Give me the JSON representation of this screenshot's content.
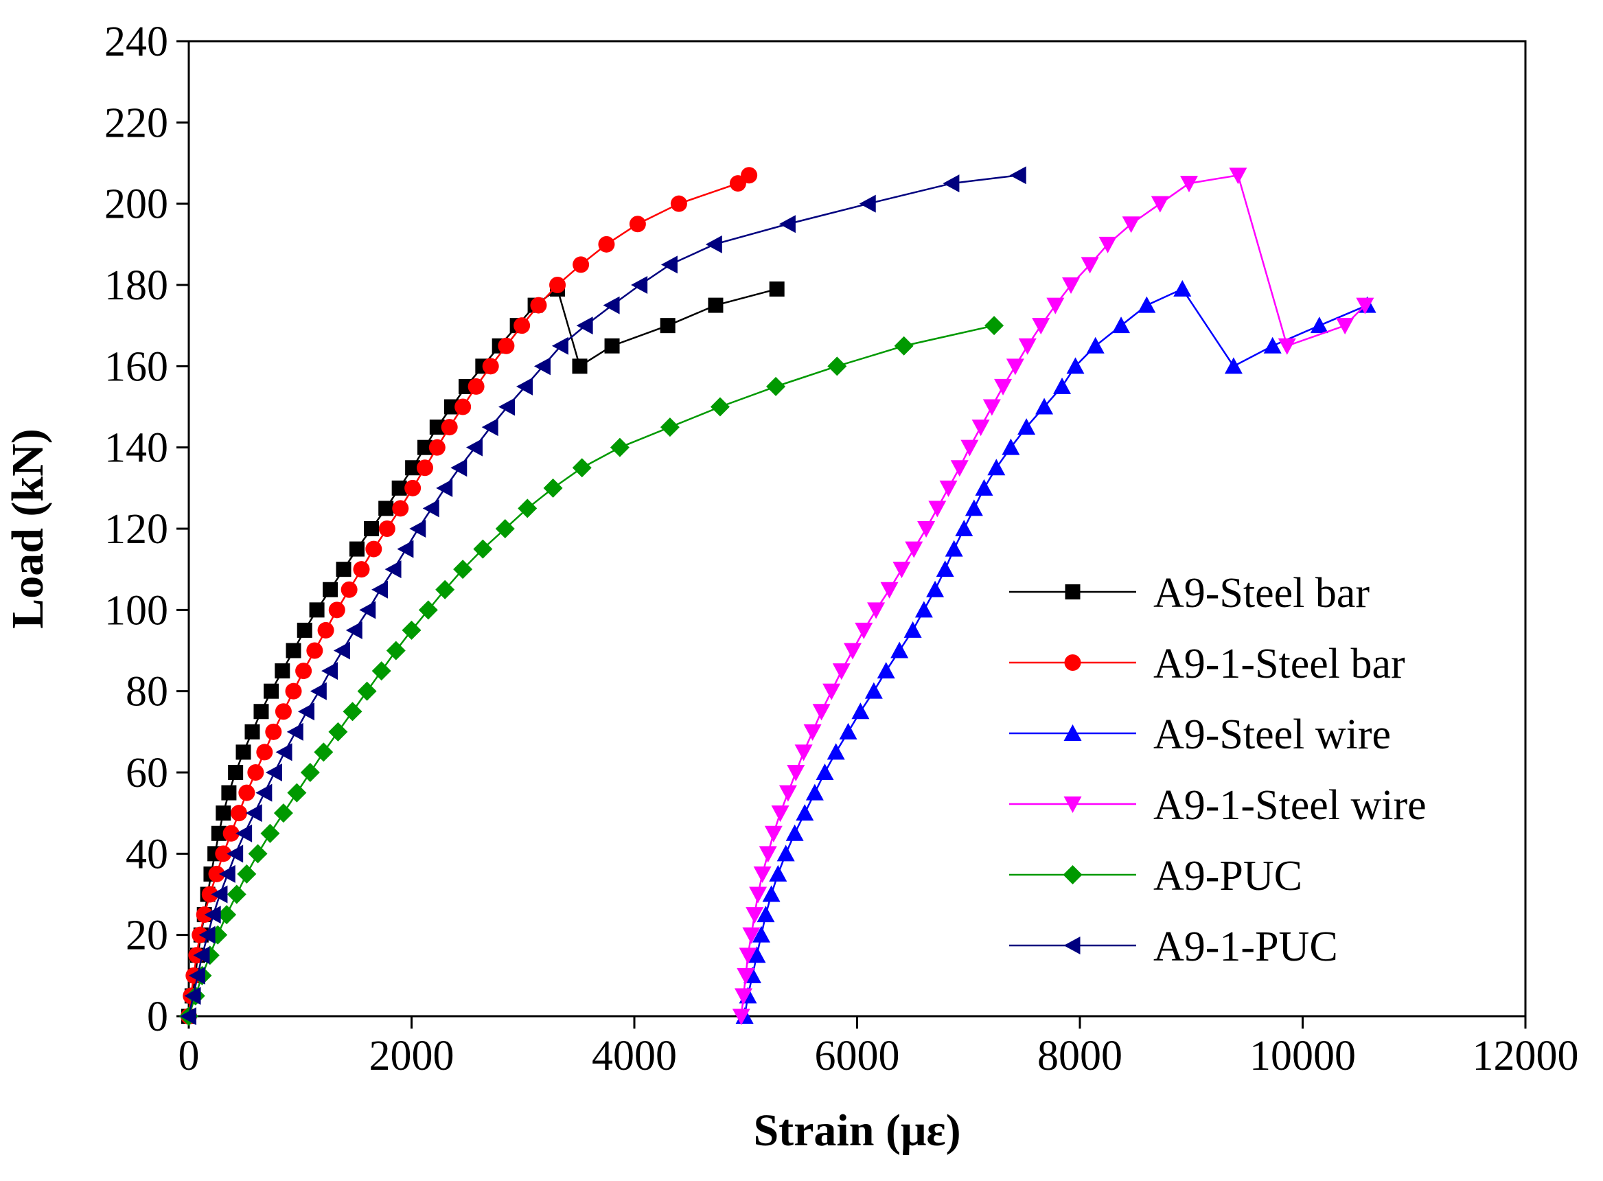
{
  "chart_data": {
    "type": "line",
    "title": "",
    "xlabel": "Strain (με)",
    "ylabel": "Load (kN)",
    "xlim": [
      0,
      12000
    ],
    "ylim": [
      0,
      240
    ],
    "xticks": [
      0,
      2000,
      4000,
      6000,
      8000,
      10000,
      12000
    ],
    "yticks": [
      0,
      20,
      40,
      60,
      80,
      100,
      120,
      140,
      160,
      180,
      200,
      220,
      240
    ],
    "grid": false,
    "legend_position": "right",
    "series": [
      {
        "name": "A9-Steel bar",
        "color": "#000000",
        "marker": "square",
        "x": [
          0,
          30,
          60,
          80,
          110,
          140,
          170,
          200,
          235,
          270,
          310,
          360,
          420,
          490,
          570,
          650,
          740,
          840,
          940,
          1040,
          1150,
          1270,
          1390,
          1510,
          1640,
          1770,
          1890,
          2010,
          2120,
          2230,
          2360,
          2490,
          2640,
          2790,
          2950,
          3110,
          3310,
          3510,
          3800,
          4300,
          4730,
          5280
        ],
        "y": [
          0,
          5,
          10,
          15,
          20,
          25,
          30,
          35,
          40,
          45,
          50,
          55,
          60,
          65,
          70,
          75,
          80,
          85,
          90,
          95,
          100,
          105,
          110,
          115,
          120,
          125,
          130,
          135,
          140,
          145,
          150,
          155,
          160,
          165,
          170,
          175,
          179,
          160,
          165,
          170,
          175,
          179
        ]
      },
      {
        "name": "A9-1-Steel bar",
        "color": "#ff0000",
        "marker": "circle",
        "x": [
          0,
          20,
          45,
          70,
          100,
          140,
          190,
          250,
          310,
          380,
          450,
          520,
          600,
          680,
          760,
          850,
          940,
          1030,
          1130,
          1230,
          1330,
          1440,
          1550,
          1660,
          1780,
          1900,
          2010,
          2120,
          2230,
          2340,
          2460,
          2580,
          2710,
          2850,
          2990,
          3140,
          3310,
          3520,
          3750,
          4030,
          4400,
          4930,
          5030
        ],
        "y": [
          0,
          5,
          10,
          15,
          20,
          25,
          30,
          35,
          40,
          45,
          50,
          55,
          60,
          65,
          70,
          75,
          80,
          85,
          90,
          95,
          100,
          105,
          110,
          115,
          120,
          125,
          130,
          135,
          140,
          145,
          150,
          155,
          160,
          165,
          170,
          175,
          180,
          185,
          190,
          195,
          200,
          205,
          207
        ]
      },
      {
        "name": "A9-Steel wire",
        "color": "#0000ff",
        "marker": "triangle-up",
        "x": [
          4990,
          5020,
          5060,
          5100,
          5140,
          5180,
          5230,
          5290,
          5360,
          5440,
          5530,
          5620,
          5710,
          5810,
          5920,
          6030,
          6150,
          6260,
          6380,
          6500,
          6600,
          6700,
          6790,
          6870,
          6960,
          7050,
          7140,
          7250,
          7380,
          7520,
          7680,
          7840,
          7960,
          8140,
          8370,
          8600,
          8920,
          9380,
          9730,
          10150,
          10580
        ],
        "y": [
          0,
          5,
          10,
          15,
          20,
          25,
          30,
          35,
          40,
          45,
          50,
          55,
          60,
          65,
          70,
          75,
          80,
          85,
          90,
          95,
          100,
          105,
          110,
          115,
          120,
          125,
          130,
          135,
          140,
          145,
          150,
          155,
          160,
          165,
          170,
          175,
          179,
          160,
          165,
          170,
          175
        ]
      },
      {
        "name": "A9-1-Steel wire",
        "color": "#ff00ff",
        "marker": "triangle-down",
        "x": [
          4960,
          4980,
          5000,
          5020,
          5050,
          5080,
          5110,
          5150,
          5200,
          5250,
          5310,
          5380,
          5450,
          5520,
          5600,
          5680,
          5770,
          5860,
          5960,
          6060,
          6170,
          6290,
          6400,
          6510,
          6620,
          6720,
          6820,
          6920,
          7010,
          7110,
          7210,
          7310,
          7420,
          7530,
          7650,
          7780,
          7920,
          8090,
          8250,
          8460,
          8720,
          8980,
          9420,
          9860,
          10380,
          10560
        ],
        "y": [
          0,
          5,
          10,
          15,
          20,
          25,
          30,
          35,
          40,
          45,
          50,
          55,
          60,
          65,
          70,
          75,
          80,
          85,
          90,
          95,
          100,
          105,
          110,
          115,
          120,
          125,
          130,
          135,
          140,
          145,
          150,
          155,
          160,
          165,
          170,
          175,
          180,
          185,
          190,
          195,
          200,
          205,
          207,
          165,
          170,
          175
        ]
      },
      {
        "name": "A9-PUC",
        "color": "#009900",
        "marker": "diamond",
        "x": [
          0,
          60,
          120,
          190,
          260,
          340,
          430,
          520,
          620,
          730,
          850,
          970,
          1090,
          1210,
          1340,
          1470,
          1600,
          1730,
          1860,
          2000,
          2150,
          2300,
          2460,
          2640,
          2840,
          3040,
          3270,
          3530,
          3870,
          4320,
          4770,
          5270,
          5820,
          6420,
          7230
        ],
        "y": [
          0,
          5,
          10,
          15,
          20,
          25,
          30,
          35,
          40,
          45,
          50,
          55,
          60,
          65,
          70,
          75,
          80,
          85,
          90,
          95,
          100,
          105,
          110,
          115,
          120,
          125,
          130,
          135,
          140,
          145,
          150,
          155,
          160,
          165,
          170
        ]
      },
      {
        "name": "A9-1-PUC",
        "color": "#00007f",
        "marker": "triangle-left",
        "x": [
          0,
          40,
          80,
          120,
          170,
          220,
          280,
          350,
          420,
          500,
          590,
          680,
          770,
          860,
          960,
          1060,
          1170,
          1270,
          1380,
          1490,
          1610,
          1720,
          1840,
          1950,
          2060,
          2180,
          2300,
          2430,
          2570,
          2710,
          2860,
          3020,
          3180,
          3340,
          3560,
          3800,
          4050,
          4320,
          4720,
          5380,
          6100,
          6850,
          7450
        ],
        "y": [
          0,
          5,
          10,
          15,
          20,
          25,
          30,
          35,
          40,
          45,
          50,
          55,
          60,
          65,
          70,
          75,
          80,
          85,
          90,
          95,
          100,
          105,
          110,
          115,
          120,
          125,
          130,
          135,
          140,
          145,
          150,
          155,
          160,
          165,
          170,
          175,
          180,
          185,
          190,
          195,
          200,
          205,
          207
        ]
      }
    ]
  }
}
